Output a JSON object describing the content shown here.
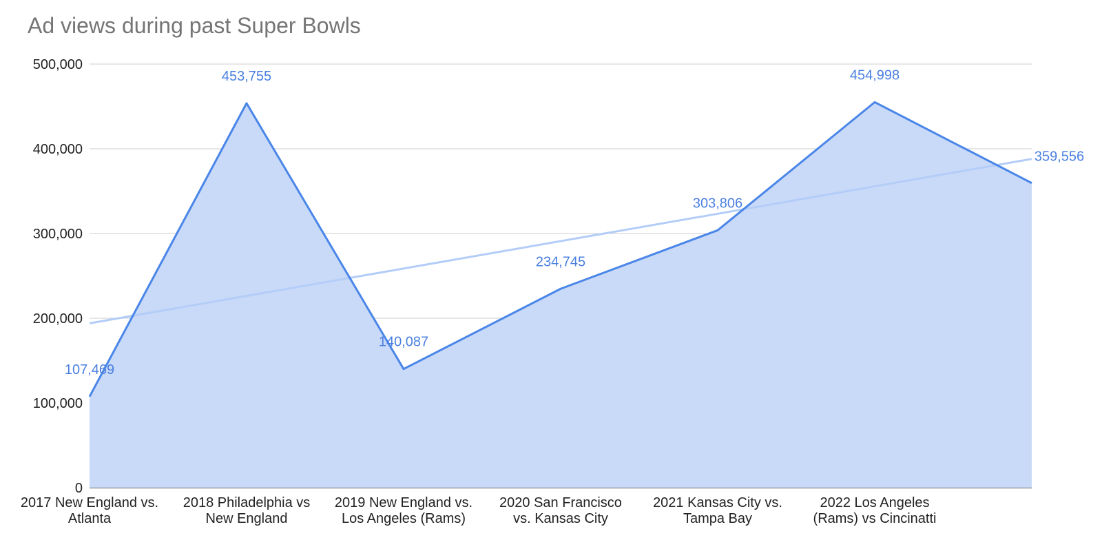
{
  "chart_data": {
    "type": "area",
    "title": "Ad views during past Super Bowls",
    "categories": [
      "2017 New England vs. Atlanta",
      "2018 Philadelphia vs New England",
      "2019 New England vs. Los Angeles (Rams)",
      "2020 San Francisco vs. Kansas City",
      "2021 Kansas City vs. Tampa Bay",
      "2022 Los Angeles (Rams) vs Cincinatti",
      null
    ],
    "values": [
      107469,
      453755,
      140087,
      234745,
      303806,
      454998,
      359556
    ],
    "value_labels": [
      "107,469",
      "453,755",
      "140,087",
      "234,745",
      "303,806",
      "454,998",
      "359,556"
    ],
    "color": "#4a86e8",
    "fill_color": "#c9daf8",
    "trendline": {
      "start": 194000,
      "end": 388000,
      "color": "#b3cdf8"
    },
    "ylim": [
      0,
      500000
    ],
    "yticks": [
      0,
      {
        "value": 100000,
        "label": "100,000"
      },
      {
        "value": 200000,
        "label": "200,000"
      },
      {
        "value": 300000,
        "label": "300,000"
      },
      {
        "value": 400000,
        "label": "400,000"
      },
      {
        "value": 500000,
        "label": "500,000"
      }
    ],
    "grid": true
  }
}
